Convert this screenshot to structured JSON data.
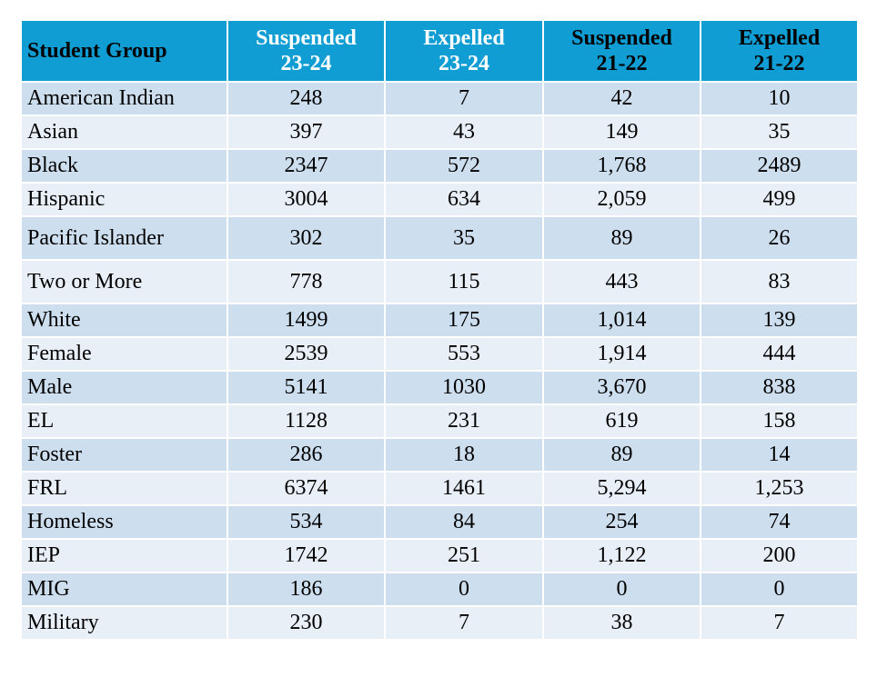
{
  "table": {
    "colors": {
      "header_bg": "#0f9dd4",
      "row_dark": "#cddeee",
      "row_light": "#e8eff7"
    },
    "headers": [
      {
        "line1": "Student Group",
        "line2": ""
      },
      {
        "line1": "Suspended",
        "line2": "23-24"
      },
      {
        "line1": "Expelled",
        "line2": "23-24"
      },
      {
        "line1": "Suspended",
        "line2": "21-22"
      },
      {
        "line1": "Expelled",
        "line2": "21-22"
      }
    ],
    "rows": [
      [
        "American Indian",
        "248",
        "7",
        "42",
        "10"
      ],
      [
        "Asian",
        "397",
        "43",
        "149",
        "35"
      ],
      [
        "Black",
        "2347",
        "572",
        "1,768",
        "2489"
      ],
      [
        "Hispanic",
        "3004",
        "634",
        "2,059",
        "499"
      ],
      [
        "Pacific Islander",
        "302",
        "35",
        "89",
        "26"
      ],
      [
        "Two or More",
        "778",
        "115",
        "443",
        "83"
      ],
      [
        "White",
        "1499",
        "175",
        "1,014",
        "139"
      ],
      [
        "Female",
        "2539",
        "553",
        "1,914",
        "444"
      ],
      [
        "Male",
        "5141",
        "1030",
        "3,670",
        "838"
      ],
      [
        "EL",
        "1128",
        "231",
        "619",
        "158"
      ],
      [
        "Foster",
        "286",
        "18",
        "89",
        "14"
      ],
      [
        "FRL",
        "6374",
        "1461",
        "5,294",
        "1,253"
      ],
      [
        "Homeless",
        "534",
        "84",
        "254",
        "74"
      ],
      [
        "IEP",
        "1742",
        "251",
        "1,122",
        "200"
      ],
      [
        "MIG",
        "186",
        "0",
        "0",
        "0"
      ],
      [
        "Military",
        "230",
        "7",
        "38",
        "7"
      ]
    ]
  }
}
